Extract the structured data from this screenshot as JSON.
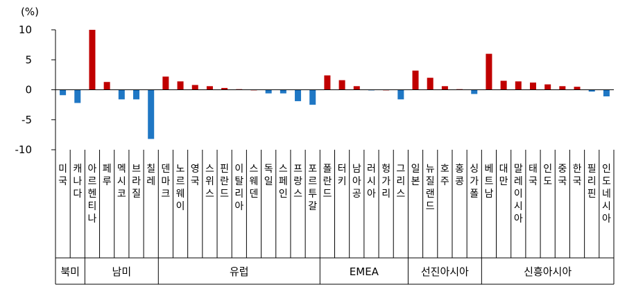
{
  "chart_data": {
    "type": "bar",
    "ylabel": "(%)",
    "ylim": [
      -10,
      10
    ],
    "yticks": [
      "10",
      "5",
      "0",
      "-5",
      "-10"
    ],
    "colors": {
      "positive": "#c00000",
      "negative": "#1f77c4"
    },
    "categories": [
      "미국",
      "캐나다",
      "아르헨티나",
      "페루",
      "멕시코",
      "브라질",
      "칠레",
      "덴마크",
      "노르웨이",
      "영국",
      "스위스",
      "핀란드",
      "이탈리아",
      "스웨덴",
      "독일",
      "스페인",
      "프랑스",
      "포르투갈",
      "폴란드",
      "터키",
      "남아공",
      "러시아",
      "헝가리",
      "그리스",
      "일본",
      "뉴질랜드",
      "호주",
      "홍콩",
      "싱가폴",
      "베트남",
      "대만",
      "말레이시아",
      "태국",
      "인도",
      "중국",
      "한국",
      "필리핀",
      "인도네시아"
    ],
    "values": [
      -0.9,
      -2.2,
      10.0,
      1.3,
      -1.6,
      -1.6,
      -8.2,
      2.2,
      1.4,
      0.8,
      0.6,
      0.3,
      0.1,
      0.0,
      -0.6,
      -0.6,
      -1.9,
      -2.5,
      2.4,
      1.6,
      0.6,
      -0.1,
      0.0,
      -1.6,
      3.2,
      2.0,
      0.6,
      0.1,
      -0.7,
      6.0,
      1.5,
      1.4,
      1.2,
      0.9,
      0.6,
      0.5,
      -0.3,
      -1.1
    ],
    "groups": [
      {
        "name": "북미",
        "count": 2
      },
      {
        "name": "남미",
        "count": 5
      },
      {
        "name": "유럽",
        "count": 11
      },
      {
        "name": "EMEA",
        "count": 6
      },
      {
        "name": "선진아시아",
        "count": 5
      },
      {
        "name": "신흥아시아",
        "count": 9
      }
    ]
  }
}
